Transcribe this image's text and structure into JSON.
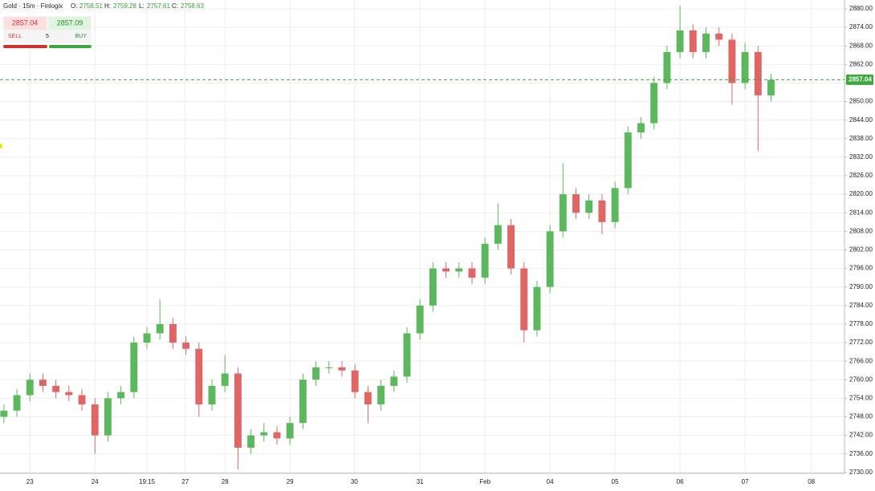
{
  "header": {
    "symbol": "Gold · 15m · Finlogix",
    "o_label": "O:",
    "o": 2758.51,
    "h_label": "H:",
    "h": 2759.28,
    "l_label": "L:",
    "l": 2757.61,
    "c_label": "C:",
    "c": 2758.63
  },
  "trade": {
    "sell_price": 2857.04,
    "buy_price": 2857.09,
    "sell_label": "SELL",
    "quantity": 5,
    "buy_label": "BUY"
  },
  "chart_data": {
    "type": "candlestick",
    "up_color": "#5cb85c",
    "down_color": "#e06666",
    "grid": true,
    "last_price": 2857.04,
    "last_price_color": "#3ca83c",
    "xlim": [
      -0.46,
      12.53
    ],
    "xticks": [
      {
        "value": 0,
        "label": "23"
      },
      {
        "value": 1,
        "label": "24"
      },
      {
        "value": 1.8,
        "label": "19:15"
      },
      {
        "value": 2.39,
        "label": "27"
      },
      {
        "value": 3,
        "label": "28"
      },
      {
        "value": 4,
        "label": "29"
      },
      {
        "value": 4.99,
        "label": "30"
      },
      {
        "value": 6,
        "label": "31"
      },
      {
        "value": 7,
        "label": "Feb"
      },
      {
        "value": 8,
        "label": "04"
      },
      {
        "value": 9,
        "label": "05"
      },
      {
        "value": 10,
        "label": "06"
      },
      {
        "value": 11,
        "label": "07"
      },
      {
        "value": 12.02,
        "label": "08"
      }
    ],
    "ylim": [
      2729.7,
      2882.85
    ],
    "yticks": [
      {
        "value": 2730,
        "label": "2730.00"
      },
      {
        "value": 2736,
        "label": "2736.00"
      },
      {
        "value": 2742,
        "label": "2742.00"
      },
      {
        "value": 2748,
        "label": "2748.00"
      },
      {
        "value": 2754,
        "label": "2754.00"
      },
      {
        "value": 2760,
        "label": "2760.00"
      },
      {
        "value": 2766,
        "label": "2766.00"
      },
      {
        "value": 2772,
        "label": "2772.00"
      },
      {
        "value": 2778,
        "label": "2778.00"
      },
      {
        "value": 2784,
        "label": "2784.00"
      },
      {
        "value": 2790,
        "label": "2790.00"
      },
      {
        "value": 2796,
        "label": "2796.00"
      },
      {
        "value": 2802,
        "label": "2802.00"
      },
      {
        "value": 2808,
        "label": "2808.00"
      },
      {
        "value": 2814,
        "label": "2814.00"
      },
      {
        "value": 2820,
        "label": "2820.00"
      },
      {
        "value": 2826,
        "label": "2826.00"
      },
      {
        "value": 2832,
        "label": "2832.00"
      },
      {
        "value": 2838,
        "label": "2838.00"
      },
      {
        "value": 2844,
        "label": "2844.00"
      },
      {
        "value": 2850,
        "label": "2850.00"
      },
      {
        "value": 2856,
        "label": "2856.00"
      },
      {
        "value": 2862,
        "label": "2862.00"
      },
      {
        "value": 2868,
        "label": "2868.00"
      },
      {
        "value": 2874,
        "label": "2874.00"
      },
      {
        "value": 2880,
        "label": "2880.00"
      }
    ],
    "x": [
      -0.4,
      -0.2,
      0,
      0.2,
      0.4,
      0.6,
      0.8,
      1,
      1.2,
      1.4,
      1.6,
      1.8,
      2,
      2.2,
      2.4,
      2.6,
      2.8,
      3,
      3.2,
      3.4,
      3.6,
      3.8,
      4,
      4.2,
      4.4,
      4.6,
      4.8,
      5,
      5.2,
      5.4,
      5.6,
      5.8,
      6,
      6.2,
      6.4,
      6.6,
      6.8,
      7,
      7.2,
      7.4,
      7.6,
      7.8,
      8,
      8.2,
      8.4,
      8.6,
      8.8,
      9,
      9.2,
      9.4,
      9.6,
      9.8,
      10,
      10.2,
      10.4,
      10.6,
      10.8,
      11,
      11.2,
      11.4
    ],
    "open": [
      2748,
      2750,
      2755,
      2760,
      2758,
      2756,
      2755,
      2752,
      2742,
      2754,
      2756,
      2772,
      2775,
      2778,
      2772,
      2770,
      2752,
      2758,
      2762,
      2738,
      2742,
      2743,
      2741,
      2746,
      2760,
      2764,
      2764,
      2763,
      2756,
      2752,
      2758,
      2761,
      2775,
      2784,
      2796,
      2795,
      2796,
      2793,
      2804,
      2810,
      2796,
      2776,
      2790,
      2808,
      2820,
      2814,
      2818,
      2811,
      2822,
      2840,
      2843,
      2856,
      2866,
      2873,
      2866,
      2872,
      2870,
      2856,
      2866,
      2852
    ],
    "high": [
      2752,
      2757,
      2762,
      2762,
      2760,
      2758,
      2757,
      2754,
      2756,
      2758,
      2774,
      2777,
      2786,
      2780,
      2774,
      2772,
      2760,
      2768,
      2764,
      2744,
      2746,
      2745,
      2748,
      2762,
      2766,
      2766,
      2766,
      2765,
      2758,
      2760,
      2763,
      2777,
      2786,
      2798,
      2798,
      2798,
      2798,
      2806,
      2817,
      2812,
      2798,
      2792,
      2810,
      2830,
      2822,
      2820,
      2820,
      2824,
      2842,
      2845,
      2858,
      2868,
      2881,
      2875,
      2874,
      2874,
      2872,
      2869,
      2868,
      2859
    ],
    "low": [
      2746,
      2748,
      2753,
      2756,
      2754,
      2753,
      2750,
      2736,
      2740,
      2752,
      2754,
      2770,
      2773,
      2770,
      2768,
      2748,
      2750,
      2756,
      2731,
      2736,
      2740,
      2739,
      2739,
      2744,
      2758,
      2762,
      2761,
      2754,
      2746,
      2750,
      2756,
      2759,
      2773,
      2782,
      2793,
      2793,
      2791,
      2791,
      2802,
      2794,
      2772,
      2774,
      2788,
      2806,
      2812,
      2812,
      2807,
      2809,
      2820,
      2838,
      2841,
      2854,
      2864,
      2864,
      2864,
      2868,
      2849,
      2854,
      2834,
      2850
    ],
    "close": [
      2750,
      2755,
      2760,
      2758,
      2756,
      2755,
      2752,
      2742,
      2754,
      2756,
      2772,
      2775,
      2778,
      2772,
      2770,
      2752,
      2758,
      2762,
      2738,
      2742,
      2743,
      2741,
      2746,
      2760,
      2764,
      2764,
      2763,
      2756,
      2752,
      2758,
      2761,
      2775,
      2784,
      2796,
      2795,
      2796,
      2793,
      2804,
      2810,
      2796,
      2776,
      2790,
      2808,
      2820,
      2814,
      2818,
      2811,
      2822,
      2840,
      2843,
      2856,
      2866,
      2873,
      2866,
      2872,
      2870,
      2856,
      2866,
      2852,
      2857
    ]
  }
}
